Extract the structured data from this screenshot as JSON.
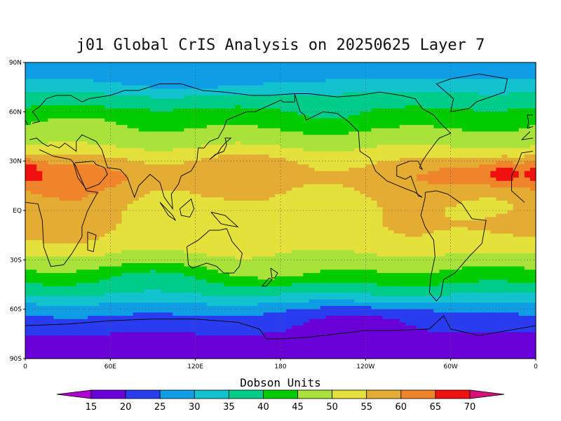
{
  "title": "j01 Global CrIS Analysis on 20250625 Layer 7",
  "colorbar": {
    "label": "Dobson Units",
    "ticks": [
      "15",
      "20",
      "25",
      "30",
      "35",
      "40",
      "45",
      "50",
      "55",
      "60",
      "65",
      "70"
    ],
    "colors": [
      "#b000d0",
      "#6a00d8",
      "#2a3cf0",
      "#0f9ee6",
      "#12c2cf",
      "#00cc8a",
      "#00cc00",
      "#a8e23a",
      "#e4e03c",
      "#e4ac32",
      "#f0842a",
      "#f01010",
      "#d8107a"
    ]
  },
  "axes": {
    "lat_labels": [
      "90N",
      "60N",
      "30N",
      "EQ",
      "30S",
      "60S",
      "90S"
    ],
    "lon_labels": [
      "0",
      "60E",
      "120E",
      "180",
      "120W",
      "60W",
      "0"
    ]
  },
  "chart_data": {
    "type": "heatmap",
    "title": "j01 Global CrIS Analysis on 20250625 Layer 7",
    "units": "Dobson Units",
    "xlim": [
      0,
      360
    ],
    "ylim": [
      -90,
      90
    ],
    "zonal_mean_profile": {
      "lat": [
        90,
        80,
        70,
        60,
        50,
        40,
        30,
        20,
        10,
        0,
        -10,
        -20,
        -30,
        -40,
        -50,
        -60,
        -70,
        -80,
        -90
      ],
      "value": [
        26,
        30,
        36,
        41,
        45,
        49,
        54,
        57,
        55,
        54,
        54,
        53,
        48,
        43,
        36,
        27,
        22,
        18,
        16
      ]
    },
    "color_levels": [
      15,
      20,
      25,
      30,
      35,
      40,
      45,
      50,
      55,
      60,
      65,
      70
    ]
  }
}
